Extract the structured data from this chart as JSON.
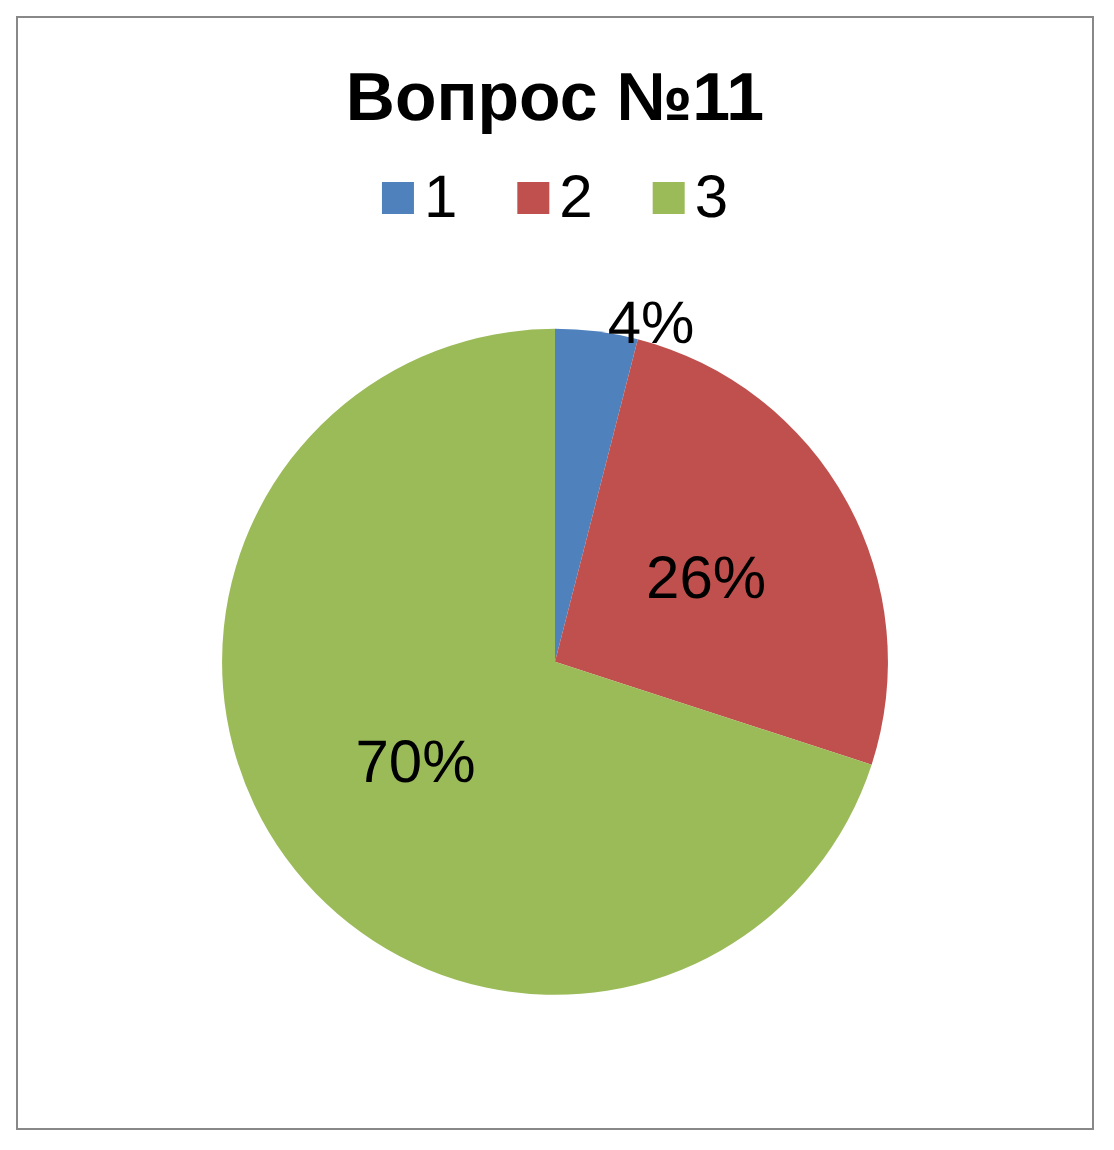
{
  "chart_data": {
    "type": "pie",
    "title": "Вопрос №11",
    "categories": [
      "1",
      "2",
      "3"
    ],
    "values": [
      4,
      26,
      70
    ],
    "colors": [
      "#4f81bd",
      "#c0504d",
      "#9bbb59"
    ],
    "legend": "top",
    "value_labels": [
      "4%",
      "26%",
      "70%"
    ]
  }
}
